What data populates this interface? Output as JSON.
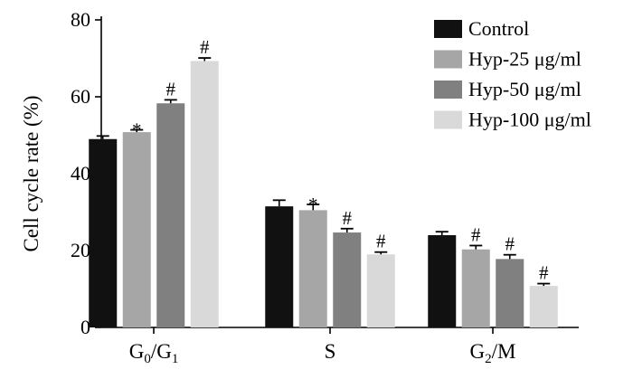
{
  "chart_data": {
    "type": "bar",
    "title": "",
    "xlabel": "",
    "ylabel": "Cell cycle rate (%)",
    "ylim": [
      0,
      80
    ],
    "yticks": [
      0,
      20,
      40,
      60,
      80
    ],
    "categories": [
      {
        "base": "G",
        "sub1": "0",
        "mid": "/G",
        "sub2": "1"
      },
      {
        "base": "S",
        "sub1": "",
        "mid": "",
        "sub2": ""
      },
      {
        "base": "G",
        "sub1": "2",
        "mid": "/M",
        "sub2": ""
      }
    ],
    "series": [
      {
        "name": "Control",
        "color": "#111111",
        "values": [
          49,
          31.5,
          24
        ],
        "errors": [
          0.8,
          1.6,
          0.9
        ],
        "marks": [
          "",
          "",
          ""
        ]
      },
      {
        "name": "Hyp-25 μg/ml",
        "color": "#a6a6a6",
        "values": [
          50.8,
          30.5,
          20.3
        ],
        "errors": [
          0.6,
          1.5,
          1.0
        ],
        "marks": [
          "*",
          "*",
          "#"
        ]
      },
      {
        "name": "Hyp-50 μg/ml",
        "color": "#808080",
        "values": [
          58.3,
          24.7,
          17.8
        ],
        "errors": [
          0.9,
          1.0,
          1.1
        ],
        "marks": [
          "#",
          "#",
          "#"
        ]
      },
      {
        "name": "Hyp-100 μg/ml",
        "color": "#d9d9d9",
        "values": [
          69.3,
          19,
          10.8
        ],
        "errors": [
          0.8,
          0.6,
          0.6
        ],
        "marks": [
          "#",
          "#",
          "#"
        ]
      }
    ],
    "legend_position": "top-right"
  }
}
